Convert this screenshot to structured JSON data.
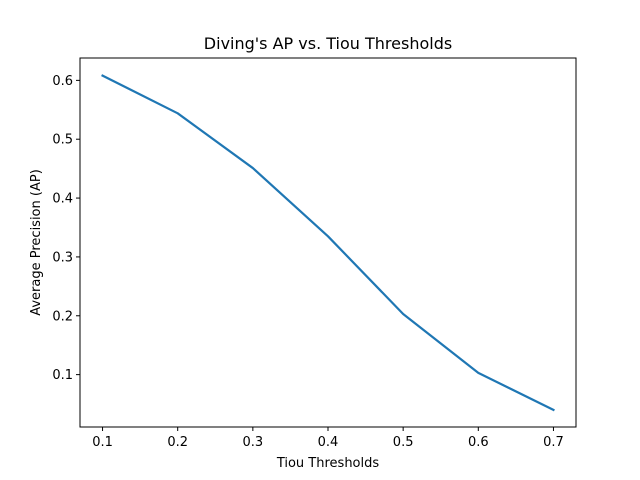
{
  "chart_data": {
    "type": "line",
    "title": "Diving's AP vs. Tiou Thresholds",
    "xlabel": "Tiou Thresholds",
    "ylabel": "Average Precision (AP)",
    "xlim": [
      0.07,
      0.73
    ],
    "ylim": [
      0.011,
      0.638
    ],
    "xticks": [
      0.1,
      0.2,
      0.3,
      0.4,
      0.5,
      0.6,
      0.7
    ],
    "xtick_labels": [
      "0.1",
      "0.2",
      "0.3",
      "0.4",
      "0.5",
      "0.6",
      "0.7"
    ],
    "yticks": [
      0.1,
      0.2,
      0.3,
      0.4,
      0.5,
      0.6
    ],
    "ytick_labels": [
      "0.1",
      "0.2",
      "0.3",
      "0.4",
      "0.5",
      "0.6"
    ],
    "grid": false,
    "series": [
      {
        "color": "#1f77b4",
        "x": [
          0.1,
          0.2,
          0.3,
          0.4,
          0.5,
          0.6,
          0.7
        ],
        "y": [
          0.608,
          0.544,
          0.451,
          0.335,
          0.203,
          0.103,
          0.04
        ]
      }
    ]
  }
}
